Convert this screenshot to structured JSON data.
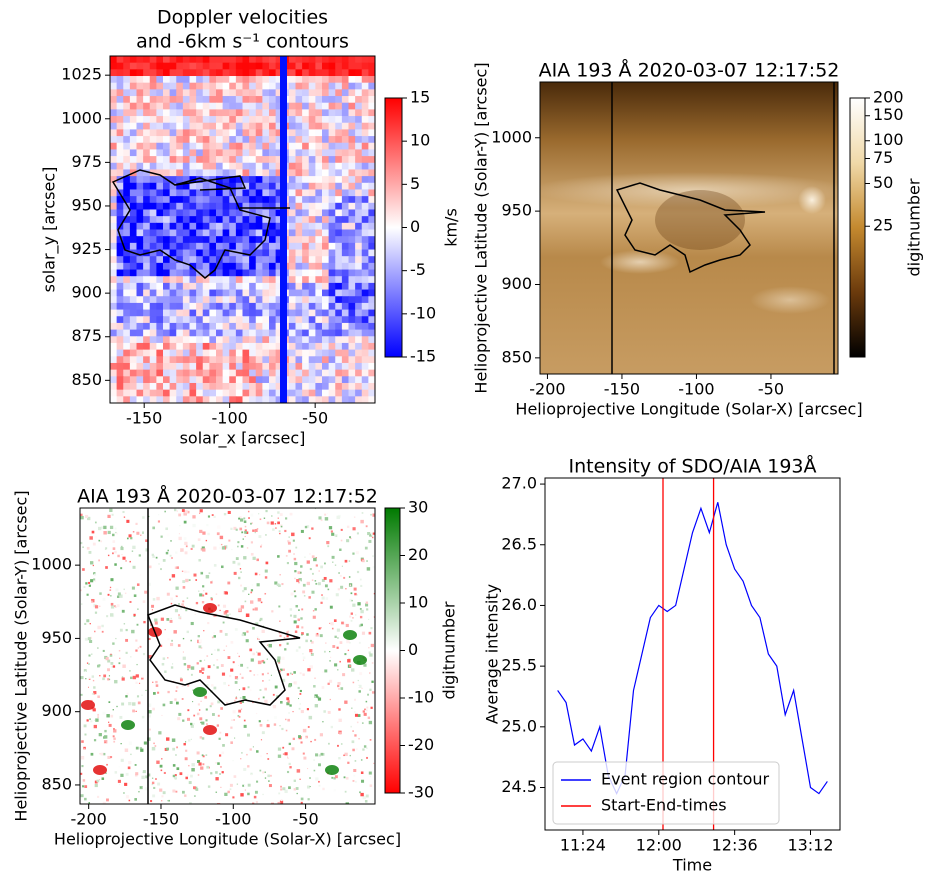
{
  "chart_data": [
    {
      "type": "heatmap",
      "title": [
        "Doppler velocities",
        "and -6km s⁻¹ contours"
      ],
      "xlabel": "solar_x [arcsec]",
      "ylabel": "solar_y [arcsec]",
      "xlim": [
        -170,
        -15
      ],
      "xticks": [
        -150,
        -100,
        -50
      ],
      "ylim": [
        837,
        1036
      ],
      "yticks": [
        850,
        875,
        900,
        925,
        950,
        975,
        1000,
        1025
      ],
      "colorbar": {
        "label": "km/s",
        "lim": [
          -15,
          15
        ],
        "ticks": [
          -15,
          -10,
          -5,
          0,
          5,
          10,
          15
        ],
        "log": false,
        "colors": [
          "#0000ff",
          "#ffffff",
          "#ff0000"
        ]
      }
    },
    {
      "type": "heatmap",
      "title": "AIA 193 Å 2020-03-07 12:17:52",
      "xlabel": "Helioprojective Longitude (Solar-X) [arcsec]",
      "ylabel": "Helioprojective Latitude (Solar-Y) [arcsec]",
      "xlim": [
        -205,
        -5
      ],
      "xticks": [
        -200,
        -150,
        -100,
        -50
      ],
      "ylim": [
        839,
        1038
      ],
      "yticks": [
        850,
        900,
        950,
        1000
      ],
      "colorbar": {
        "label": "digitnumber",
        "lim": [
          3,
          200
        ],
        "ticks": [
          25,
          50,
          75,
          100,
          150,
          200
        ],
        "log": true,
        "colors": [
          "#000000",
          "#6b3a0c",
          "#c4892f",
          "#f0d9a8",
          "#ffffff"
        ]
      }
    },
    {
      "type": "heatmap",
      "title": "AIA 193 Å 2020-03-07 12:17:52",
      "xlabel": "Helioprojective Longitude (Solar-X) [arcsec]",
      "ylabel": "Helioprojective Latitude (Solar-Y) [arcsec]",
      "xlim": [
        -206,
        -2
      ],
      "xticks": [
        -200,
        -150,
        -100,
        -50
      ],
      "ylim": [
        837,
        1039
      ],
      "yticks": [
        850,
        900,
        950,
        1000
      ],
      "colorbar": {
        "label": "digitnumber",
        "lim": [
          -30,
          30
        ],
        "ticks": [
          -30,
          -20,
          -10,
          0,
          10,
          20,
          30
        ],
        "log": false,
        "colors": [
          "#ff0000",
          "#ffffff",
          "#007a00"
        ]
      }
    },
    {
      "type": "line",
      "title": "Intensity of SDO/AIA 193Å",
      "xlabel": "Time",
      "ylabel": "Average intensity",
      "xlim": [
        "11:06",
        "13:26"
      ],
      "xticks": [
        "11:24",
        "12:00",
        "12:36",
        "13:12"
      ],
      "ylim": [
        24.15,
        27.05
      ],
      "yticks": [
        24.5,
        {
          "value": 25,
          "label": "25.0"
        },
        25.5,
        {
          "value": 26,
          "label": "26.0"
        },
        26.5,
        {
          "value": 27,
          "label": "27.0"
        }
      ],
      "x": [
        "11:12",
        "11:16",
        "11:20",
        "11:24",
        "11:28",
        "11:32",
        "11:36",
        "11:40",
        "11:44",
        "11:48",
        "11:52",
        "11:56",
        "12:00",
        "12:04",
        "12:08",
        "12:12",
        "12:16",
        "12:20",
        "12:24",
        "12:28",
        "12:32",
        "12:36",
        "12:40",
        "12:44",
        "12:48",
        "12:52",
        "12:56",
        "13:00",
        "13:04",
        "13:08",
        "13:12",
        "13:16",
        "13:20"
      ],
      "series": [
        {
          "name": "Event region contour",
          "color": "#0000ff",
          "values": [
            25.3,
            25.2,
            24.85,
            24.9,
            24.8,
            25.0,
            24.6,
            24.45,
            24.6,
            25.3,
            25.6,
            25.9,
            26.0,
            25.95,
            26.0,
            26.3,
            26.6,
            26.8,
            26.6,
            26.85,
            26.5,
            26.3,
            26.2,
            26.0,
            25.9,
            25.6,
            25.5,
            25.1,
            25.3,
            24.9,
            24.5,
            24.45,
            24.55
          ]
        },
        {
          "name": "Start-End-times",
          "color": "#ff0000",
          "x": [
            "12:02",
            "12:26"
          ]
        }
      ],
      "legend": "lower left"
    }
  ]
}
